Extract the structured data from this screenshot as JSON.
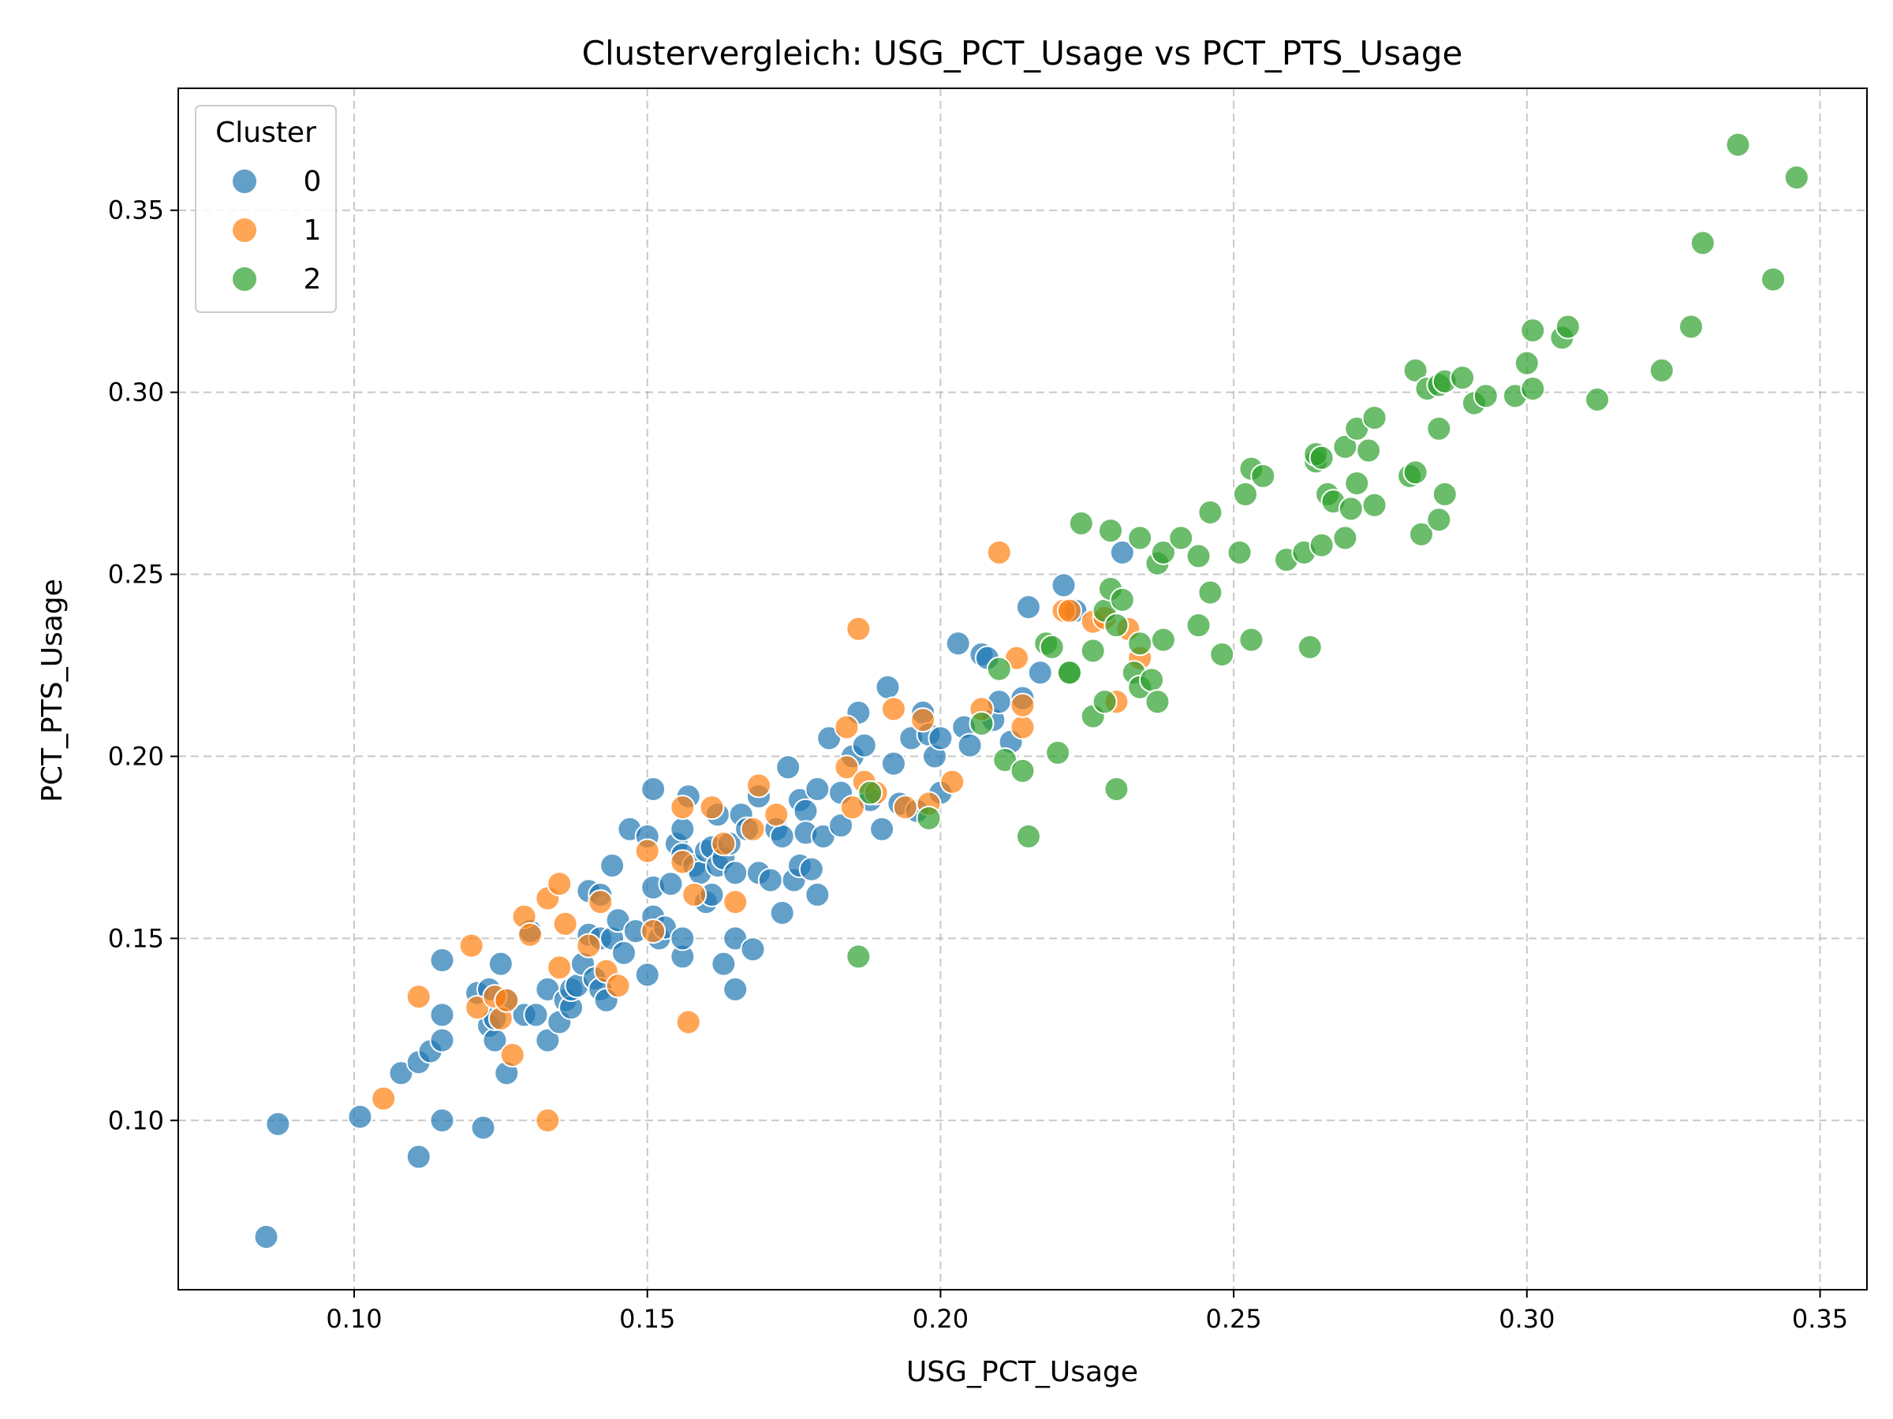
{
  "chart_data": {
    "type": "scatter",
    "title": "Clustervergleich: USG_PCT_Usage vs PCT_PTS_Usage",
    "xlabel": "USG_PCT_Usage",
    "ylabel": "PCT_PTS_Usage",
    "xlim": [
      0.07,
      0.358
    ],
    "ylim": [
      0.0535,
      0.3835
    ],
    "xticks": [
      "0.10",
      "0.15",
      "0.20",
      "0.25",
      "0.30",
      "0.35"
    ],
    "yticks": [
      "0.10",
      "0.15",
      "0.20",
      "0.25",
      "0.30",
      "0.35"
    ],
    "grid": true,
    "legend": {
      "title": "Cluster",
      "placement": "top-left"
    },
    "series": [
      {
        "name": "0",
        "color": "#1f77b4",
        "points": [
          [
            0.085,
            0.068
          ],
          [
            0.087,
            0.099
          ],
          [
            0.101,
            0.101
          ],
          [
            0.108,
            0.113
          ],
          [
            0.111,
            0.09
          ],
          [
            0.111,
            0.116
          ],
          [
            0.113,
            0.119
          ],
          [
            0.115,
            0.1
          ],
          [
            0.115,
            0.122
          ],
          [
            0.115,
            0.129
          ],
          [
            0.115,
            0.144
          ],
          [
            0.121,
            0.135
          ],
          [
            0.122,
            0.098
          ],
          [
            0.123,
            0.126
          ],
          [
            0.123,
            0.136
          ],
          [
            0.124,
            0.122
          ],
          [
            0.124,
            0.128
          ],
          [
            0.125,
            0.143
          ],
          [
            0.126,
            0.113
          ],
          [
            0.126,
            0.133
          ],
          [
            0.129,
            0.129
          ],
          [
            0.13,
            0.152
          ],
          [
            0.131,
            0.129
          ],
          [
            0.133,
            0.122
          ],
          [
            0.133,
            0.136
          ],
          [
            0.135,
            0.127
          ],
          [
            0.136,
            0.133
          ],
          [
            0.137,
            0.131
          ],
          [
            0.137,
            0.136
          ],
          [
            0.138,
            0.137
          ],
          [
            0.139,
            0.143
          ],
          [
            0.14,
            0.151
          ],
          [
            0.14,
            0.163
          ],
          [
            0.141,
            0.139
          ],
          [
            0.142,
            0.136
          ],
          [
            0.142,
            0.15
          ],
          [
            0.142,
            0.162
          ],
          [
            0.143,
            0.133
          ],
          [
            0.144,
            0.17
          ],
          [
            0.144,
            0.15
          ],
          [
            0.145,
            0.155
          ],
          [
            0.146,
            0.146
          ],
          [
            0.147,
            0.18
          ],
          [
            0.148,
            0.152
          ],
          [
            0.15,
            0.178
          ],
          [
            0.15,
            0.14
          ],
          [
            0.151,
            0.191
          ],
          [
            0.151,
            0.164
          ],
          [
            0.151,
            0.156
          ],
          [
            0.152,
            0.15
          ],
          [
            0.153,
            0.153
          ],
          [
            0.154,
            0.165
          ],
          [
            0.155,
            0.176
          ],
          [
            0.156,
            0.18
          ],
          [
            0.156,
            0.173
          ],
          [
            0.156,
            0.145
          ],
          [
            0.156,
            0.15
          ],
          [
            0.157,
            0.189
          ],
          [
            0.158,
            0.17
          ],
          [
            0.159,
            0.168
          ],
          [
            0.16,
            0.174
          ],
          [
            0.16,
            0.16
          ],
          [
            0.161,
            0.162
          ],
          [
            0.161,
            0.175
          ],
          [
            0.162,
            0.184
          ],
          [
            0.162,
            0.17
          ],
          [
            0.163,
            0.143
          ],
          [
            0.163,
            0.172
          ],
          [
            0.164,
            0.176
          ],
          [
            0.165,
            0.136
          ],
          [
            0.165,
            0.15
          ],
          [
            0.165,
            0.168
          ],
          [
            0.166,
            0.184
          ],
          [
            0.167,
            0.18
          ],
          [
            0.168,
            0.147
          ],
          [
            0.169,
            0.189
          ],
          [
            0.169,
            0.168
          ],
          [
            0.171,
            0.166
          ],
          [
            0.172,
            0.18
          ],
          [
            0.173,
            0.157
          ],
          [
            0.173,
            0.178
          ],
          [
            0.174,
            0.197
          ],
          [
            0.175,
            0.166
          ],
          [
            0.176,
            0.188
          ],
          [
            0.176,
            0.17
          ],
          [
            0.177,
            0.185
          ],
          [
            0.177,
            0.179
          ],
          [
            0.178,
            0.169
          ],
          [
            0.179,
            0.191
          ],
          [
            0.179,
            0.162
          ],
          [
            0.18,
            0.178
          ],
          [
            0.181,
            0.205
          ],
          [
            0.183,
            0.19
          ],
          [
            0.183,
            0.181
          ],
          [
            0.185,
            0.2
          ],
          [
            0.186,
            0.212
          ],
          [
            0.187,
            0.203
          ],
          [
            0.188,
            0.188
          ],
          [
            0.19,
            0.18
          ],
          [
            0.191,
            0.219
          ],
          [
            0.192,
            0.198
          ],
          [
            0.193,
            0.187
          ],
          [
            0.195,
            0.205
          ],
          [
            0.196,
            0.185
          ],
          [
            0.197,
            0.212
          ],
          [
            0.198,
            0.206
          ],
          [
            0.199,
            0.2
          ],
          [
            0.2,
            0.19
          ],
          [
            0.2,
            0.205
          ],
          [
            0.203,
            0.231
          ],
          [
            0.204,
            0.208
          ],
          [
            0.205,
            0.203
          ],
          [
            0.207,
            0.228
          ],
          [
            0.208,
            0.227
          ],
          [
            0.209,
            0.21
          ],
          [
            0.21,
            0.215
          ],
          [
            0.212,
            0.204
          ],
          [
            0.214,
            0.216
          ],
          [
            0.215,
            0.241
          ],
          [
            0.217,
            0.223
          ],
          [
            0.221,
            0.247
          ],
          [
            0.223,
            0.24
          ],
          [
            0.231,
            0.256
          ]
        ]
      },
      {
        "name": "1",
        "color": "#ff7f0e",
        "points": [
          [
            0.105,
            0.106
          ],
          [
            0.111,
            0.134
          ],
          [
            0.12,
            0.148
          ],
          [
            0.121,
            0.131
          ],
          [
            0.124,
            0.134
          ],
          [
            0.125,
            0.128
          ],
          [
            0.126,
            0.133
          ],
          [
            0.127,
            0.118
          ],
          [
            0.129,
            0.156
          ],
          [
            0.13,
            0.151
          ],
          [
            0.133,
            0.1
          ],
          [
            0.133,
            0.161
          ],
          [
            0.135,
            0.165
          ],
          [
            0.135,
            0.142
          ],
          [
            0.136,
            0.154
          ],
          [
            0.14,
            0.148
          ],
          [
            0.142,
            0.16
          ],
          [
            0.143,
            0.141
          ],
          [
            0.145,
            0.137
          ],
          [
            0.15,
            0.174
          ],
          [
            0.151,
            0.152
          ],
          [
            0.156,
            0.186
          ],
          [
            0.156,
            0.171
          ],
          [
            0.157,
            0.127
          ],
          [
            0.158,
            0.162
          ],
          [
            0.161,
            0.186
          ],
          [
            0.163,
            0.176
          ],
          [
            0.165,
            0.16
          ],
          [
            0.168,
            0.18
          ],
          [
            0.169,
            0.192
          ],
          [
            0.172,
            0.184
          ],
          [
            0.184,
            0.197
          ],
          [
            0.184,
            0.208
          ],
          [
            0.185,
            0.186
          ],
          [
            0.186,
            0.235
          ],
          [
            0.187,
            0.193
          ],
          [
            0.189,
            0.19
          ],
          [
            0.192,
            0.213
          ],
          [
            0.194,
            0.186
          ],
          [
            0.197,
            0.21
          ],
          [
            0.198,
            0.187
          ],
          [
            0.202,
            0.193
          ],
          [
            0.207,
            0.213
          ],
          [
            0.21,
            0.256
          ],
          [
            0.213,
            0.227
          ],
          [
            0.214,
            0.208
          ],
          [
            0.214,
            0.214
          ],
          [
            0.221,
            0.24
          ],
          [
            0.222,
            0.24
          ],
          [
            0.226,
            0.237
          ],
          [
            0.228,
            0.238
          ],
          [
            0.23,
            0.215
          ],
          [
            0.232,
            0.235
          ],
          [
            0.234,
            0.227
          ]
        ]
      },
      {
        "name": "2",
        "color": "#2ca02c",
        "points": [
          [
            0.186,
            0.145
          ],
          [
            0.188,
            0.19
          ],
          [
            0.198,
            0.183
          ],
          [
            0.207,
            0.209
          ],
          [
            0.21,
            0.224
          ],
          [
            0.211,
            0.199
          ],
          [
            0.214,
            0.196
          ],
          [
            0.215,
            0.178
          ],
          [
            0.218,
            0.231
          ],
          [
            0.219,
            0.23
          ],
          [
            0.22,
            0.201
          ],
          [
            0.222,
            0.223
          ],
          [
            0.222,
            0.223
          ],
          [
            0.224,
            0.264
          ],
          [
            0.226,
            0.211
          ],
          [
            0.226,
            0.229
          ],
          [
            0.228,
            0.215
          ],
          [
            0.228,
            0.24
          ],
          [
            0.229,
            0.262
          ],
          [
            0.229,
            0.246
          ],
          [
            0.23,
            0.191
          ],
          [
            0.23,
            0.236
          ],
          [
            0.231,
            0.243
          ],
          [
            0.233,
            0.223
          ],
          [
            0.234,
            0.26
          ],
          [
            0.234,
            0.231
          ],
          [
            0.234,
            0.219
          ],
          [
            0.236,
            0.221
          ],
          [
            0.237,
            0.253
          ],
          [
            0.237,
            0.215
          ],
          [
            0.238,
            0.232
          ],
          [
            0.238,
            0.256
          ],
          [
            0.241,
            0.26
          ],
          [
            0.244,
            0.236
          ],
          [
            0.244,
            0.255
          ],
          [
            0.246,
            0.245
          ],
          [
            0.246,
            0.267
          ],
          [
            0.248,
            0.228
          ],
          [
            0.251,
            0.256
          ],
          [
            0.252,
            0.272
          ],
          [
            0.253,
            0.232
          ],
          [
            0.253,
            0.279
          ],
          [
            0.255,
            0.277
          ],
          [
            0.259,
            0.254
          ],
          [
            0.262,
            0.256
          ],
          [
            0.263,
            0.23
          ],
          [
            0.264,
            0.281
          ],
          [
            0.264,
            0.283
          ],
          [
            0.265,
            0.258
          ],
          [
            0.265,
            0.282
          ],
          [
            0.266,
            0.272
          ],
          [
            0.267,
            0.27
          ],
          [
            0.269,
            0.26
          ],
          [
            0.269,
            0.285
          ],
          [
            0.27,
            0.268
          ],
          [
            0.271,
            0.29
          ],
          [
            0.271,
            0.275
          ],
          [
            0.273,
            0.284
          ],
          [
            0.274,
            0.293
          ],
          [
            0.274,
            0.269
          ],
          [
            0.28,
            0.277
          ],
          [
            0.281,
            0.278
          ],
          [
            0.281,
            0.306
          ],
          [
            0.282,
            0.261
          ],
          [
            0.283,
            0.301
          ],
          [
            0.285,
            0.265
          ],
          [
            0.285,
            0.29
          ],
          [
            0.285,
            0.302
          ],
          [
            0.286,
            0.303
          ],
          [
            0.286,
            0.272
          ],
          [
            0.289,
            0.304
          ],
          [
            0.291,
            0.297
          ],
          [
            0.293,
            0.299
          ],
          [
            0.298,
            0.299
          ],
          [
            0.3,
            0.308
          ],
          [
            0.301,
            0.317
          ],
          [
            0.301,
            0.301
          ],
          [
            0.306,
            0.315
          ],
          [
            0.307,
            0.318
          ],
          [
            0.312,
            0.298
          ],
          [
            0.323,
            0.306
          ],
          [
            0.328,
            0.318
          ],
          [
            0.33,
            0.341
          ],
          [
            0.336,
            0.368
          ],
          [
            0.342,
            0.331
          ],
          [
            0.346,
            0.359
          ]
        ]
      }
    ]
  }
}
